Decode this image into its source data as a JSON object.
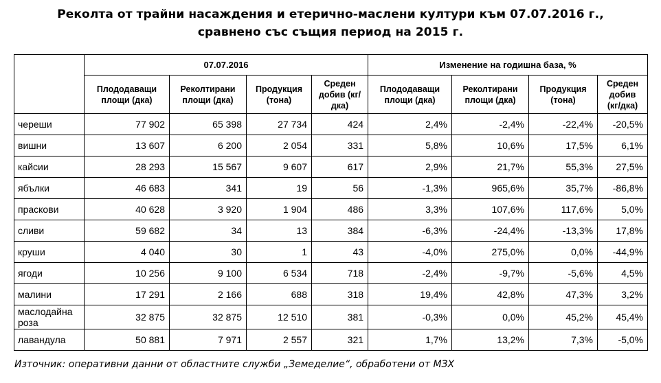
{
  "title": {
    "line1": "Реколта от трайни насаждения и етерично-маслени култури към 07.07.2016 г.,",
    "line2": "сравнено със същия период на 2015 г."
  },
  "table": {
    "group_headers": [
      "07.07.2016",
      "Изменение на годишна база, %"
    ],
    "sub_headers": [
      "Плододаващи площи (дка)",
      "Реколтирани площи (дка)",
      "Продукция (тона)",
      "Среден добив (кг/дка)",
      "Плододаващи площи (дка)",
      "Реколтирани площи (дка)",
      "Продукция (тона)",
      "Среден добив (кг/дка)"
    ],
    "rows": [
      {
        "name": "череши",
        "values": [
          "77 902",
          "65 398",
          "27 734",
          "424",
          "2,4%",
          "-2,4%",
          "-22,4%",
          "-20,5%"
        ]
      },
      {
        "name": "вишни",
        "values": [
          "13 607",
          "6 200",
          "2 054",
          "331",
          "5,8%",
          "10,6%",
          "17,5%",
          "6,1%"
        ]
      },
      {
        "name": "кайсии",
        "values": [
          "28 293",
          "15 567",
          "9 607",
          "617",
          "2,9%",
          "21,7%",
          "55,3%",
          "27,5%"
        ]
      },
      {
        "name": "ябълки",
        "values": [
          "46 683",
          "341",
          "19",
          "56",
          "-1,3%",
          "965,6%",
          "35,7%",
          "-86,8%"
        ]
      },
      {
        "name": "праскови",
        "values": [
          "40 628",
          "3 920",
          "1 904",
          "486",
          "3,3%",
          "107,6%",
          "117,6%",
          "5,0%"
        ]
      },
      {
        "name": "сливи",
        "values": [
          "59 682",
          "34",
          "13",
          "384",
          "-6,3%",
          "-24,4%",
          "-13,3%",
          "17,8%"
        ]
      },
      {
        "name": "круши",
        "values": [
          "4 040",
          "30",
          "1",
          "43",
          "-4,0%",
          "275,0%",
          "0,0%",
          "-44,9%"
        ]
      },
      {
        "name": "ягоди",
        "values": [
          "10 256",
          "9 100",
          "6 534",
          "718",
          "-2,4%",
          "-9,7%",
          "-5,6%",
          "4,5%"
        ]
      },
      {
        "name": "малини",
        "values": [
          "17 291",
          "2 166",
          "688",
          "318",
          "19,4%",
          "42,8%",
          "47,3%",
          "3,2%"
        ]
      },
      {
        "name": "маслодайна роза",
        "values": [
          "32 875",
          "32 875",
          "12 510",
          "381",
          "-0,3%",
          "0,0%",
          "45,2%",
          "45,4%"
        ]
      },
      {
        "name": "лавандула",
        "values": [
          "50 881",
          "7 971",
          "2 557",
          "321",
          "1,7%",
          "13,2%",
          "7,3%",
          "-5,0%"
        ]
      }
    ]
  },
  "source": "Източник: оперативни данни от областните служби „Земеделие“, обработени от МЗХ"
}
